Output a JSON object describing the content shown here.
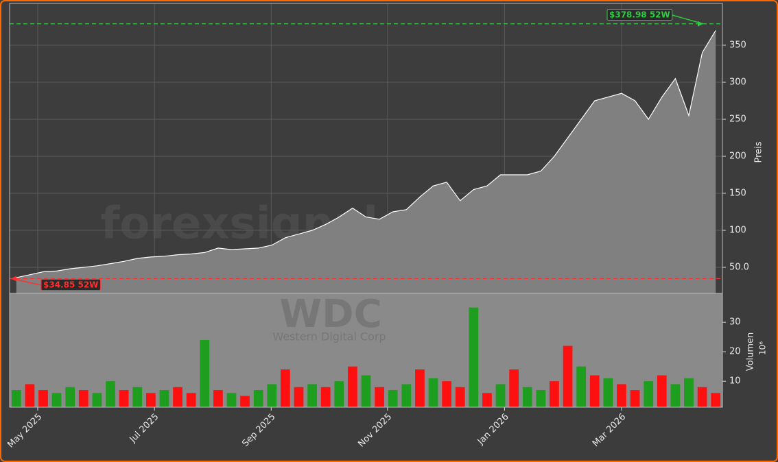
{
  "chart_data": {
    "type": "area",
    "watermark": "forexsignale.trade",
    "ticker": "WDC",
    "company": "Western Digital Corp",
    "ylabel": "Preis",
    "x": [
      0,
      1,
      2,
      3,
      4,
      5,
      6,
      7,
      8,
      9,
      10,
      11,
      12,
      13,
      14,
      15,
      16,
      17,
      18,
      19,
      20,
      21,
      22,
      23,
      24,
      25,
      26,
      27,
      28,
      29,
      30,
      31,
      32,
      33,
      34,
      35,
      36,
      37,
      38,
      39,
      40,
      41,
      42,
      43,
      44,
      45,
      46,
      47,
      48,
      49,
      50,
      51,
      52
    ],
    "close": [
      36,
      40,
      44,
      45,
      48,
      50,
      52,
      55,
      58,
      62,
      64,
      65,
      67,
      68,
      70,
      76,
      74,
      75,
      76,
      80,
      90,
      95,
      100,
      108,
      118,
      130,
      118,
      115,
      125,
      128,
      145,
      160,
      165,
      140,
      155,
      160,
      175,
      175,
      175,
      180,
      200,
      225,
      250,
      275,
      280,
      285,
      275,
      250,
      280,
      305,
      255,
      340,
      370
    ],
    "color": "#808080",
    "line_color": "#ffffff",
    "xlim": [
      -0.5,
      52.5
    ],
    "xticks": [
      {
        "value": 1.59,
        "label": "May 2025"
      },
      {
        "value": 10.27,
        "label": "Jul 2025"
      },
      {
        "value": 18.95,
        "label": "Sep 2025"
      },
      {
        "value": 27.6,
        "label": "Nov 2025"
      },
      {
        "value": 36.3,
        "label": "Jan 2026"
      },
      {
        "value": 45.0,
        "label": "Mar 2026"
      }
    ],
    "ylim": [
      14.8,
      406.5
    ],
    "yticks": [
      {
        "value": 50,
        "label": "50.0"
      },
      100,
      150,
      200,
      250,
      300,
      350
    ],
    "grid": true,
    "high_annotation": {
      "value": 378.98,
      "label": "$378.98 52W",
      "color": "#2ecc40"
    },
    "low_annotation": {
      "value": 34.85,
      "label": "$34.85 52W",
      "color": "#ff3030"
    },
    "volume": {
      "ylabel": "Volumen",
      "scale_label": "10⁶",
      "values": [
        7,
        9,
        7,
        6,
        8,
        7,
        6,
        10,
        7,
        8,
        6,
        7,
        8,
        6,
        24,
        7,
        6,
        5,
        7,
        9,
        14,
        8,
        9,
        8,
        10,
        15,
        12,
        8,
        7,
        9,
        14,
        11,
        10,
        8,
        35,
        6,
        9,
        14,
        8,
        7,
        10,
        22,
        15,
        12,
        11,
        9,
        7,
        10,
        12,
        9,
        11,
        8,
        6
      ],
      "colors": [
        "#1e9e1e",
        "#ff1010",
        "#ff1010",
        "#1e9e1e",
        "#1e9e1e",
        "#ff1010",
        "#1e9e1e",
        "#1e9e1e",
        "#ff1010",
        "#1e9e1e",
        "#ff1010",
        "#1e9e1e",
        "#ff1010",
        "#ff1010",
        "#1e9e1e",
        "#ff1010",
        "#1e9e1e",
        "#ff1010",
        "#1e9e1e",
        "#1e9e1e",
        "#ff1010",
        "#ff1010",
        "#1e9e1e",
        "#ff1010",
        "#1e9e1e",
        "#ff1010",
        "#1e9e1e",
        "#ff1010",
        "#1e9e1e",
        "#1e9e1e",
        "#ff1010",
        "#1e9e1e",
        "#ff1010",
        "#ff1010",
        "#1e9e1e",
        "#ff1010",
        "#1e9e1e",
        "#ff1010",
        "#1e9e1e",
        "#1e9e1e",
        "#ff1010",
        "#ff1010",
        "#1e9e1e",
        "#ff1010",
        "#1e9e1e",
        "#ff1010",
        "#ff1010",
        "#1e9e1e",
        "#ff1010",
        "#1e9e1e",
        "#1e9e1e",
        "#ff1010",
        "#ff1010"
      ],
      "ylim": [
        1.2,
        39.8
      ],
      "yticks": [
        10,
        20,
        30
      ]
    }
  }
}
